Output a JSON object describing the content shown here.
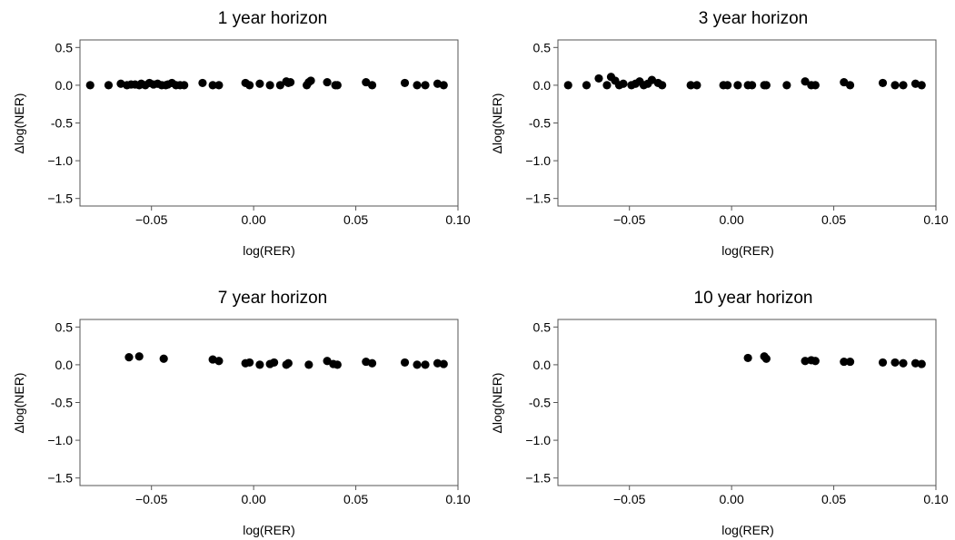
{
  "chart_data": [
    {
      "type": "scatter",
      "title": "1 year horizon",
      "xlabel": "log(RER)",
      "ylabel": "Δlog(NER)",
      "xlim": [
        -0.085,
        0.1
      ],
      "ylim": [
        -1.6,
        0.6
      ],
      "xticks": [
        -0.05,
        0.0,
        0.05,
        0.1
      ],
      "xtick_labels": [
        "−0.05",
        "0.00",
        "0.05",
        "0.10"
      ],
      "yticks": [
        0.5,
        0.0,
        -0.5,
        -1.0,
        -1.5
      ],
      "ytick_labels": [
        "0.5",
        "0.0",
        "-0.5",
        "−1.0",
        "−1.5"
      ],
      "grid": false,
      "series": [
        {
          "color": "#000000",
          "points": [
            [
              -0.08,
              0.0
            ],
            [
              -0.071,
              0.0
            ],
            [
              -0.065,
              0.02
            ],
            [
              -0.062,
              0.0
            ],
            [
              -0.06,
              0.01
            ],
            [
              -0.058,
              0.01
            ],
            [
              -0.056,
              0.0
            ],
            [
              -0.055,
              0.02
            ],
            [
              -0.053,
              0.0
            ],
            [
              -0.051,
              0.03
            ],
            [
              -0.049,
              0.01
            ],
            [
              -0.047,
              0.02
            ],
            [
              -0.045,
              0.0
            ],
            [
              -0.043,
              0.0
            ],
            [
              -0.042,
              0.01
            ],
            [
              -0.04,
              0.03
            ],
            [
              -0.038,
              0.0
            ],
            [
              -0.036,
              0.0
            ],
            [
              -0.034,
              0.0
            ],
            [
              -0.025,
              0.03
            ],
            [
              -0.02,
              0.0
            ],
            [
              -0.017,
              0.0
            ],
            [
              -0.004,
              0.03
            ],
            [
              -0.002,
              0.0
            ],
            [
              0.003,
              0.02
            ],
            [
              0.008,
              0.0
            ],
            [
              0.013,
              0.0
            ],
            [
              0.016,
              0.05
            ],
            [
              0.017,
              0.03
            ],
            [
              0.018,
              0.04
            ],
            [
              0.026,
              0.0
            ],
            [
              0.027,
              0.04
            ],
            [
              0.028,
              0.06
            ],
            [
              0.036,
              0.04
            ],
            [
              0.04,
              0.0
            ],
            [
              0.041,
              0.0
            ],
            [
              0.055,
              0.04
            ],
            [
              0.058,
              0.0
            ],
            [
              0.074,
              0.03
            ],
            [
              0.08,
              0.0
            ],
            [
              0.084,
              0.0
            ],
            [
              0.09,
              0.02
            ],
            [
              0.093,
              0.0
            ]
          ]
        }
      ]
    },
    {
      "type": "scatter",
      "title": "3 year horizon",
      "xlabel": "log(RER)",
      "ylabel": "Δlog(NER)",
      "xlim": [
        -0.085,
        0.1
      ],
      "ylim": [
        -1.6,
        0.6
      ],
      "xticks": [
        -0.05,
        0.0,
        0.05,
        0.1
      ],
      "xtick_labels": [
        "−0.05",
        "0.00",
        "0.05",
        "0.10"
      ],
      "yticks": [
        0.5,
        0.0,
        -0.5,
        -1.0,
        -1.5
      ],
      "ytick_labels": [
        "0.5",
        "0.0",
        "-0.5",
        "−1.0",
        "−1.5"
      ],
      "grid": false,
      "series": [
        {
          "color": "#000000",
          "points": [
            [
              -0.08,
              0.0
            ],
            [
              -0.071,
              0.0
            ],
            [
              -0.065,
              0.09
            ],
            [
              -0.061,
              0.0
            ],
            [
              -0.059,
              0.11
            ],
            [
              -0.057,
              0.06
            ],
            [
              -0.055,
              0.0
            ],
            [
              -0.053,
              0.02
            ],
            [
              -0.049,
              0.0
            ],
            [
              -0.047,
              0.02
            ],
            [
              -0.045,
              0.05
            ],
            [
              -0.043,
              0.0
            ],
            [
              -0.041,
              0.02
            ],
            [
              -0.039,
              0.07
            ],
            [
              -0.036,
              0.03
            ],
            [
              -0.034,
              0.0
            ],
            [
              -0.02,
              0.0
            ],
            [
              -0.017,
              0.0
            ],
            [
              -0.004,
              0.0
            ],
            [
              -0.002,
              0.0
            ],
            [
              0.003,
              0.0
            ],
            [
              0.008,
              0.0
            ],
            [
              0.01,
              0.0
            ],
            [
              0.016,
              0.0
            ],
            [
              0.017,
              0.0
            ],
            [
              0.027,
              0.0
            ],
            [
              0.036,
              0.05
            ],
            [
              0.039,
              0.0
            ],
            [
              0.041,
              0.0
            ],
            [
              0.055,
              0.04
            ],
            [
              0.058,
              0.0
            ],
            [
              0.074,
              0.03
            ],
            [
              0.08,
              0.0
            ],
            [
              0.084,
              0.0
            ],
            [
              0.09,
              0.02
            ],
            [
              0.093,
              0.0
            ]
          ]
        }
      ]
    },
    {
      "type": "scatter",
      "title": "7 year horizon",
      "xlabel": "log(RER)",
      "ylabel": "Δlog(NER)",
      "xlim": [
        -0.085,
        0.1
      ],
      "ylim": [
        -1.6,
        0.6
      ],
      "xticks": [
        -0.05,
        0.0,
        0.05,
        0.1
      ],
      "xtick_labels": [
        "−0.05",
        "0.00",
        "0.05",
        "0.10"
      ],
      "yticks": [
        0.5,
        0.0,
        -0.5,
        -1.0,
        -1.5
      ],
      "ytick_labels": [
        "0.5",
        "0.0",
        "-0.5",
        "−1.0",
        "−1.5"
      ],
      "grid": false,
      "series": [
        {
          "color": "#000000",
          "points": [
            [
              -0.061,
              0.1
            ],
            [
              -0.056,
              0.11
            ],
            [
              -0.044,
              0.08
            ],
            [
              -0.02,
              0.07
            ],
            [
              -0.017,
              0.05
            ],
            [
              -0.004,
              0.02
            ],
            [
              -0.002,
              0.03
            ],
            [
              0.003,
              0.0
            ],
            [
              0.008,
              0.01
            ],
            [
              0.01,
              0.03
            ],
            [
              0.016,
              0.0
            ],
            [
              0.017,
              0.02
            ],
            [
              0.027,
              0.0
            ],
            [
              0.036,
              0.05
            ],
            [
              0.039,
              0.01
            ],
            [
              0.041,
              0.0
            ],
            [
              0.055,
              0.04
            ],
            [
              0.058,
              0.02
            ],
            [
              0.074,
              0.03
            ],
            [
              0.08,
              0.0
            ],
            [
              0.084,
              0.0
            ],
            [
              0.09,
              0.02
            ],
            [
              0.093,
              0.01
            ]
          ]
        }
      ]
    },
    {
      "type": "scatter",
      "title": "10 year horizon",
      "xlabel": "log(RER)",
      "ylabel": "Δlog(NER)",
      "xlim": [
        -0.085,
        0.1
      ],
      "ylim": [
        -1.6,
        0.6
      ],
      "xticks": [
        -0.05,
        0.0,
        0.05,
        0.1
      ],
      "xtick_labels": [
        "−0.05",
        "0.00",
        "0.05",
        "0.10"
      ],
      "yticks": [
        0.5,
        0.0,
        -0.5,
        -1.0,
        -1.5
      ],
      "ytick_labels": [
        "0.5",
        "0.0",
        "-0.5",
        "−1.0",
        "−1.5"
      ],
      "grid": false,
      "series": [
        {
          "color": "#000000",
          "points": [
            [
              0.008,
              0.09
            ],
            [
              0.016,
              0.11
            ],
            [
              0.017,
              0.08
            ],
            [
              0.036,
              0.05
            ],
            [
              0.039,
              0.06
            ],
            [
              0.041,
              0.05
            ],
            [
              0.055,
              0.04
            ],
            [
              0.058,
              0.04
            ],
            [
              0.074,
              0.03
            ],
            [
              0.08,
              0.03
            ],
            [
              0.084,
              0.02
            ],
            [
              0.09,
              0.02
            ],
            [
              0.093,
              0.01
            ]
          ]
        }
      ]
    }
  ]
}
